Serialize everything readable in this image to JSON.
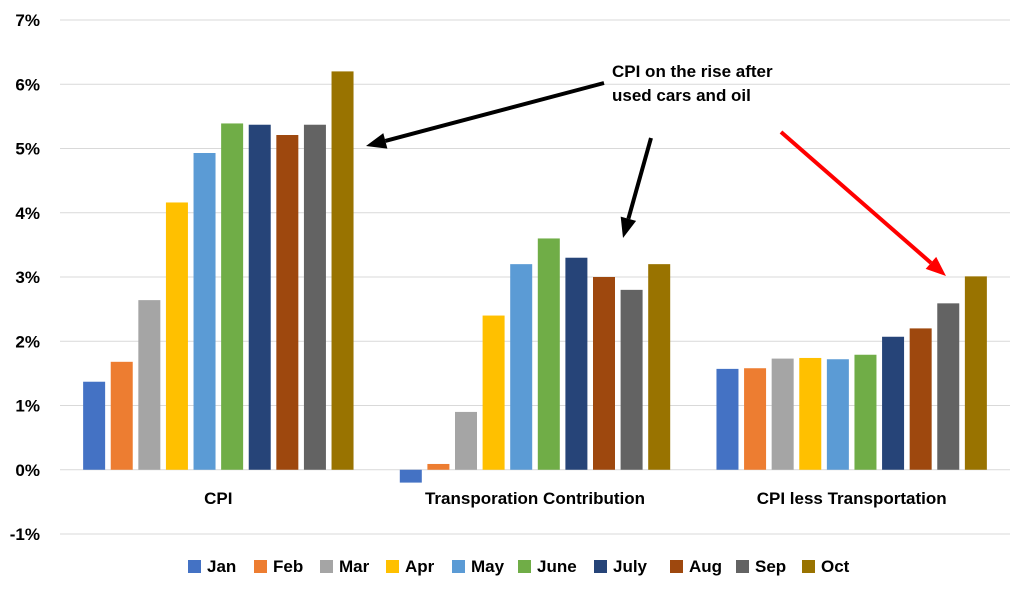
{
  "chart_data": {
    "type": "bar",
    "categories": [
      "CPI",
      "Transporation Contribution",
      "CPI less Transportation"
    ],
    "series": [
      {
        "name": "Jan",
        "color": "#4472C4",
        "values": [
          1.37,
          -0.2,
          1.57
        ]
      },
      {
        "name": "Feb",
        "color": "#ED7D31",
        "values": [
          1.68,
          0.09,
          1.58
        ]
      },
      {
        "name": "Mar",
        "color": "#A5A5A5",
        "values": [
          2.64,
          0.9,
          1.73
        ]
      },
      {
        "name": "Apr",
        "color": "#FFC000",
        "values": [
          4.16,
          2.4,
          1.74
        ]
      },
      {
        "name": "May",
        "color": "#5B9BD5",
        "values": [
          4.93,
          3.2,
          1.72
        ]
      },
      {
        "name": "June",
        "color": "#70AD47",
        "values": [
          5.39,
          3.6,
          1.79
        ]
      },
      {
        "name": "July",
        "color": "#264478",
        "values": [
          5.37,
          3.3,
          2.07
        ]
      },
      {
        "name": "Aug",
        "color": "#9E480E",
        "values": [
          5.21,
          3.0,
          2.2
        ]
      },
      {
        "name": "Sep",
        "color": "#636363",
        "values": [
          5.37,
          2.8,
          2.59
        ]
      },
      {
        "name": "Oct",
        "color": "#997300",
        "values": [
          6.2,
          3.2,
          3.01
        ]
      }
    ],
    "ylim": [
      -1,
      7
    ],
    "yticks": [
      "-1%",
      "0%",
      "1%",
      "2%",
      "3%",
      "4%",
      "5%",
      "6%",
      "7%"
    ],
    "grid": true,
    "legend_position": "bottom",
    "annotation_text": [
      "CPI on the rise after",
      "used cars and oil"
    ],
    "arrow_colors": [
      "#000000",
      "#000000",
      "#FF0000"
    ]
  }
}
